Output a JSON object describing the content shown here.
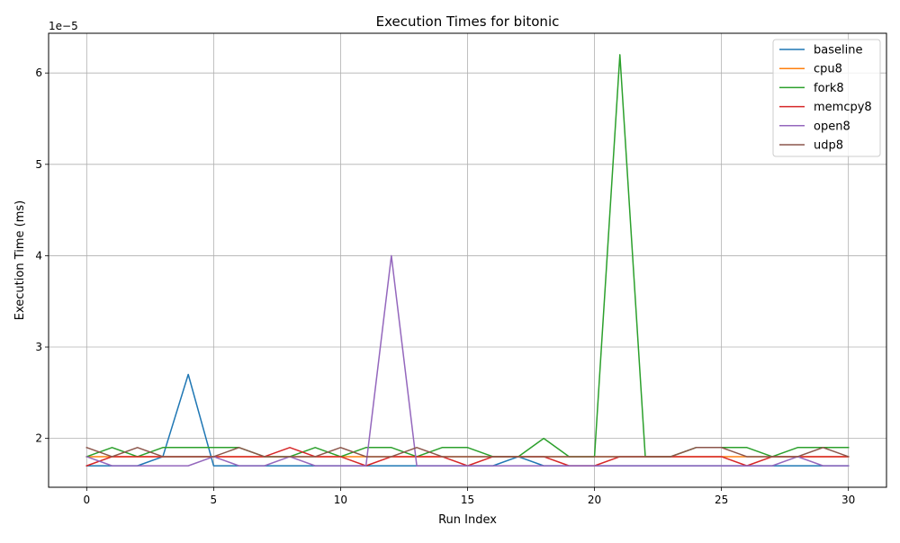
{
  "chart_data": {
    "type": "line",
    "title": "Execution Times for bitonic",
    "xlabel": "Run Index",
    "ylabel": "Execution Time (ms)",
    "y_scale_label": "1e−5",
    "xlim": [
      -1.5,
      31.5
    ],
    "ylim": [
      1.465,
      6.435
    ],
    "x_ticks": [
      0,
      5,
      10,
      15,
      20,
      25,
      30
    ],
    "x_tick_labels": [
      "0",
      "5",
      "10",
      "15",
      "20",
      "25",
      "30"
    ],
    "y_ticks": [
      2,
      3,
      4,
      5,
      6
    ],
    "y_tick_labels": [
      "2",
      "3",
      "4",
      "5",
      "6"
    ],
    "grid": true,
    "legend_position": "top-right",
    "x": [
      0,
      1,
      2,
      3,
      4,
      5,
      6,
      7,
      8,
      9,
      10,
      11,
      12,
      13,
      14,
      15,
      16,
      17,
      18,
      19,
      20,
      21,
      22,
      23,
      24,
      25,
      26,
      27,
      28,
      29,
      30
    ],
    "series": [
      {
        "name": "baseline",
        "color": "#1f77b4",
        "values": [
          1.7,
          1.7,
          1.7,
          1.8,
          2.7,
          1.7,
          1.7,
          1.7,
          1.7,
          1.7,
          1.7,
          1.7,
          1.7,
          1.7,
          1.7,
          1.7,
          1.7,
          1.8,
          1.7,
          1.7,
          1.7,
          1.7,
          1.7,
          1.7,
          1.7,
          1.7,
          1.7,
          1.7,
          1.7,
          1.7,
          1.7
        ]
      },
      {
        "name": "cpu8",
        "color": "#ff7f0e",
        "values": [
          1.8,
          1.8,
          1.8,
          1.8,
          1.8,
          1.8,
          1.8,
          1.8,
          1.8,
          1.8,
          1.8,
          1.8,
          1.8,
          1.8,
          1.8,
          1.8,
          1.8,
          1.8,
          1.8,
          1.8,
          1.8,
          1.8,
          1.8,
          1.8,
          1.8,
          1.8,
          1.8,
          1.8,
          1.8,
          1.8,
          1.8
        ]
      },
      {
        "name": "fork8",
        "color": "#2ca02c",
        "values": [
          1.8,
          1.9,
          1.8,
          1.9,
          1.9,
          1.9,
          1.9,
          1.8,
          1.8,
          1.9,
          1.8,
          1.9,
          1.9,
          1.8,
          1.9,
          1.9,
          1.8,
          1.8,
          2.0,
          1.8,
          1.8,
          6.2,
          1.8,
          1.8,
          1.9,
          1.9,
          1.9,
          1.8,
          1.9,
          1.9,
          1.9
        ]
      },
      {
        "name": "memcpy8",
        "color": "#d62728",
        "values": [
          1.7,
          1.8,
          1.8,
          1.8,
          1.8,
          1.8,
          1.8,
          1.8,
          1.9,
          1.8,
          1.8,
          1.7,
          1.8,
          1.8,
          1.8,
          1.7,
          1.8,
          1.8,
          1.8,
          1.7,
          1.7,
          1.8,
          1.8,
          1.8,
          1.8,
          1.8,
          1.7,
          1.8,
          1.8,
          1.8,
          1.8
        ]
      },
      {
        "name": "open8",
        "color": "#9467bd",
        "values": [
          1.8,
          1.7,
          1.7,
          1.7,
          1.7,
          1.8,
          1.7,
          1.7,
          1.8,
          1.7,
          1.7,
          1.7,
          4.0,
          1.7,
          1.7,
          1.7,
          1.7,
          1.7,
          1.7,
          1.7,
          1.7,
          1.7,
          1.7,
          1.7,
          1.7,
          1.7,
          1.7,
          1.7,
          1.8,
          1.7,
          1.7
        ]
      },
      {
        "name": "udp8",
        "color": "#8c564b",
        "values": [
          1.9,
          1.8,
          1.9,
          1.8,
          1.8,
          1.8,
          1.9,
          1.8,
          1.8,
          1.8,
          1.9,
          1.8,
          1.8,
          1.9,
          1.8,
          1.8,
          1.8,
          1.8,
          1.8,
          1.8,
          1.8,
          1.8,
          1.8,
          1.8,
          1.9,
          1.9,
          1.8,
          1.8,
          1.8,
          1.9,
          1.8
        ]
      }
    ]
  }
}
